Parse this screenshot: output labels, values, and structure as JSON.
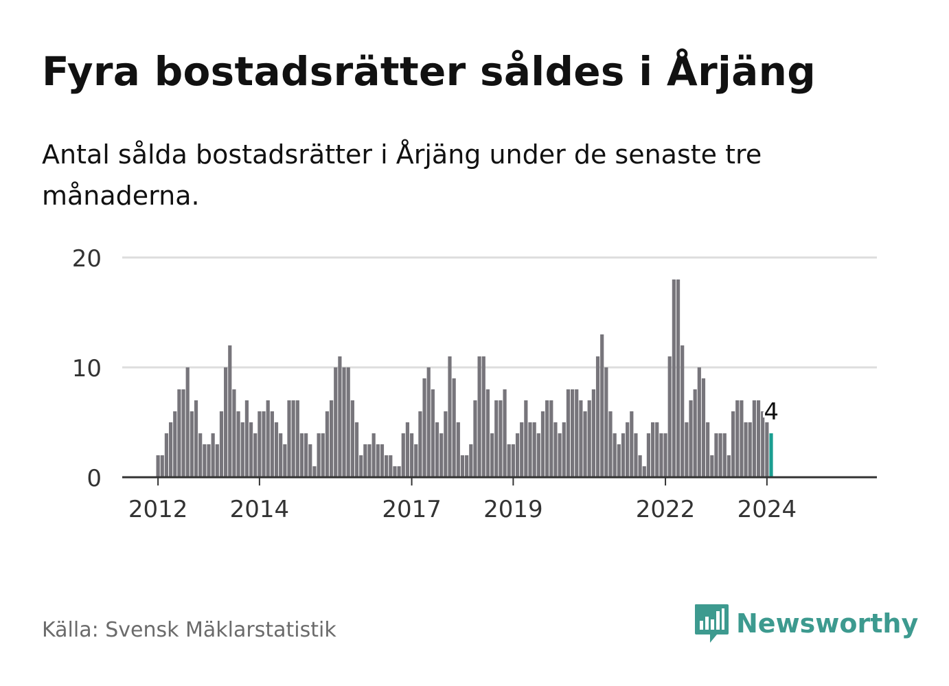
{
  "title": "Fyra bostadsrätter såldes i Årjäng",
  "subtitle": "Antal sålda bostadsrätter i Årjäng under de senaste tre månaderna.",
  "source": "Källa: Svensk Mäklarstatistik",
  "brand": {
    "name": "Newsworthy",
    "icon": "newsworthy-logo-icon",
    "color": "#3d9a8f"
  },
  "colors": {
    "bar": "#77757b",
    "highlight": "#1a9e91",
    "grid": "#dddddd",
    "axis": "#333333",
    "text": "#333333"
  },
  "chart_data": {
    "type": "bar",
    "title": "",
    "xlabel": "",
    "ylabel": "",
    "ylim": [
      0,
      20
    ],
    "yticks": [
      0,
      10,
      20
    ],
    "xticks": [
      "2012",
      "2014",
      "2017",
      "2019",
      "2022",
      "2024"
    ],
    "start_month": "2012-01",
    "highlight_label": "4",
    "values": [
      2,
      2,
      4,
      5,
      6,
      8,
      8,
      10,
      6,
      7,
      4,
      3,
      3,
      4,
      3,
      6,
      10,
      12,
      8,
      6,
      5,
      7,
      5,
      4,
      6,
      6,
      7,
      6,
      5,
      4,
      3,
      7,
      7,
      7,
      4,
      4,
      3,
      1,
      4,
      4,
      6,
      7,
      10,
      11,
      10,
      10,
      7,
      5,
      2,
      3,
      3,
      4,
      3,
      3,
      2,
      2,
      1,
      1,
      4,
      5,
      4,
      3,
      6,
      9,
      10,
      8,
      5,
      4,
      6,
      11,
      9,
      5,
      2,
      2,
      3,
      7,
      11,
      11,
      8,
      4,
      7,
      7,
      8,
      3,
      3,
      4,
      5,
      7,
      5,
      5,
      4,
      6,
      7,
      7,
      5,
      4,
      5,
      8,
      8,
      8,
      7,
      6,
      7,
      8,
      11,
      13,
      10,
      6,
      4,
      3,
      4,
      5,
      6,
      4,
      2,
      1,
      4,
      5,
      5,
      4,
      4,
      11,
      18,
      18,
      12,
      5,
      7,
      8,
      10,
      9,
      5,
      2,
      4,
      4,
      4,
      2,
      6,
      7,
      7,
      5,
      5,
      7,
      7,
      6,
      5,
      4
    ]
  }
}
